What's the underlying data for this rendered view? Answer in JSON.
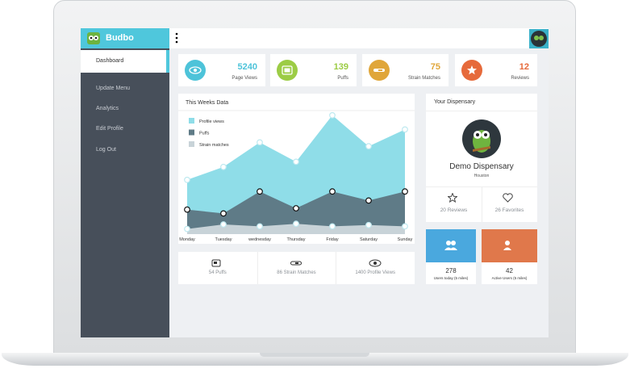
{
  "brand": "Budbo",
  "menu": [
    "Dashboard",
    "Update Menu",
    "Analytics",
    "Edit Profile",
    "Log Out"
  ],
  "stats": [
    {
      "value": 5240,
      "label": "Page Views"
    },
    {
      "value": 139,
      "label": "Puffs"
    },
    {
      "value": 75,
      "label": "Strain Matches"
    },
    {
      "value": 12,
      "label": "Reviews"
    }
  ],
  "chart": {
    "type": "area",
    "title": "This Weeks Data",
    "categories": [
      "Monday",
      "Tuesday",
      "wednesday",
      "Thursday",
      "Friday",
      "Saturday",
      "Sunday"
    ],
    "ylim": [
      0,
      100
    ],
    "series": [
      {
        "name": "Profile views",
        "color": "#8fdde8",
        "values": [
          42,
          52,
          71,
          56,
          92,
          68,
          81
        ]
      },
      {
        "name": "Puffs",
        "color": "#5f7b87",
        "values": [
          19,
          16,
          33,
          20,
          33,
          26,
          33
        ]
      },
      {
        "name": "Strain matches",
        "color": "#c8d3d8",
        "values": [
          4,
          7.5,
          6,
          8,
          6,
          7,
          6
        ]
      }
    ]
  },
  "summary": [
    "54 Puffs",
    "86 Strain Matches",
    "1400 Profile Views"
  ],
  "dispensary": {
    "heading": "Your Dispensary",
    "name": "Demo Dispensary",
    "city": "Houston",
    "reviews": "20 Reviews",
    "favorites": "26 Favorites"
  },
  "users": [
    {
      "value": 278,
      "label": "Users today (5 miles)"
    },
    {
      "value": 42,
      "label": "Active Users (5 miles)"
    }
  ]
}
